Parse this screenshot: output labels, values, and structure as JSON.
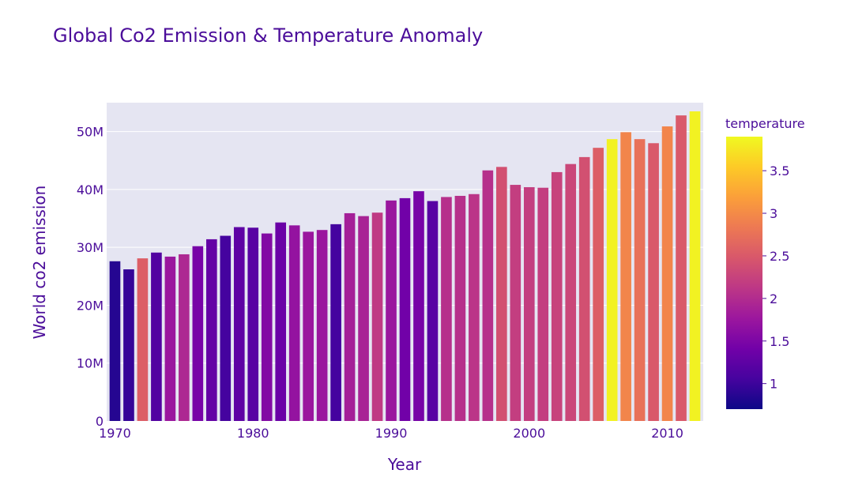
{
  "chart_data": {
    "type": "bar",
    "title": "Global Co2 Emission & Temperature Anomaly",
    "xlabel": "Year",
    "ylabel": "World co2 emission",
    "x": [
      1970,
      1971,
      1972,
      1973,
      1974,
      1975,
      1976,
      1977,
      1978,
      1979,
      1980,
      1981,
      1982,
      1983,
      1984,
      1985,
      1986,
      1987,
      1988,
      1989,
      1990,
      1991,
      1992,
      1993,
      1994,
      1995,
      1996,
      1997,
      1998,
      1999,
      2000,
      2001,
      2002,
      2003,
      2004,
      2005,
      2006,
      2007,
      2008,
      2009,
      2010,
      2011,
      2012
    ],
    "values": [
      27.6,
      26.2,
      28.1,
      29.1,
      28.4,
      28.8,
      30.2,
      31.4,
      32.0,
      33.5,
      33.4,
      32.4,
      34.3,
      33.8,
      32.7,
      33.0,
      34.0,
      35.9,
      35.4,
      36.0,
      38.1,
      38.5,
      39.7,
      38.0,
      38.7,
      38.9,
      39.2,
      43.3,
      43.9,
      40.8,
      40.4,
      40.3,
      43.0,
      44.4,
      45.6,
      47.2,
      48.7,
      49.9,
      48.7,
      48.0,
      50.9,
      52.8,
      53.5
    ],
    "temperature": [
      0.85,
      0.95,
      2.55,
      1.15,
      1.75,
      1.95,
      1.45,
      1.3,
      1.05,
      1.25,
      1.2,
      1.55,
      1.35,
      1.7,
      1.75,
      1.75,
      1.05,
      1.85,
      1.9,
      2.15,
      1.75,
      1.4,
      1.45,
      1.2,
      2.05,
      2.05,
      2.1,
      2.05,
      2.4,
      2.2,
      2.2,
      2.2,
      2.25,
      2.3,
      2.4,
      2.55,
      3.85,
      2.95,
      2.75,
      2.5,
      2.95,
      2.5,
      3.85
    ],
    "ylim": [
      0,
      55
    ],
    "y_ticks": [
      {
        "value": 0,
        "label": "0"
      },
      {
        "value": 10,
        "label": "10M"
      },
      {
        "value": 20,
        "label": "20M"
      },
      {
        "value": 30,
        "label": "30M"
      },
      {
        "value": 40,
        "label": "40M"
      },
      {
        "value": 50,
        "label": "50M"
      }
    ],
    "x_ticks": [
      "1970",
      "1980",
      "1990",
      "2000",
      "2010"
    ],
    "xlim": [
      1969.4,
      2012.6
    ],
    "colorbar": {
      "title": "temperature",
      "range": [
        0.7,
        3.9
      ],
      "ticks": [
        "1",
        "1.5",
        "2",
        "2.5",
        "3",
        "3.5"
      ],
      "tick_values": [
        1,
        1.5,
        2,
        2.5,
        3,
        3.5
      ],
      "colorscale": [
        "#0d0887",
        "#46039f",
        "#7201a8",
        "#9c179e",
        "#bd3786",
        "#d8576b",
        "#ed7953",
        "#fb9f3a",
        "#fdca26",
        "#f0f921"
      ]
    },
    "grid": true,
    "legend": "colorbar-right",
    "plot_bg": "#e5e5f2"
  }
}
